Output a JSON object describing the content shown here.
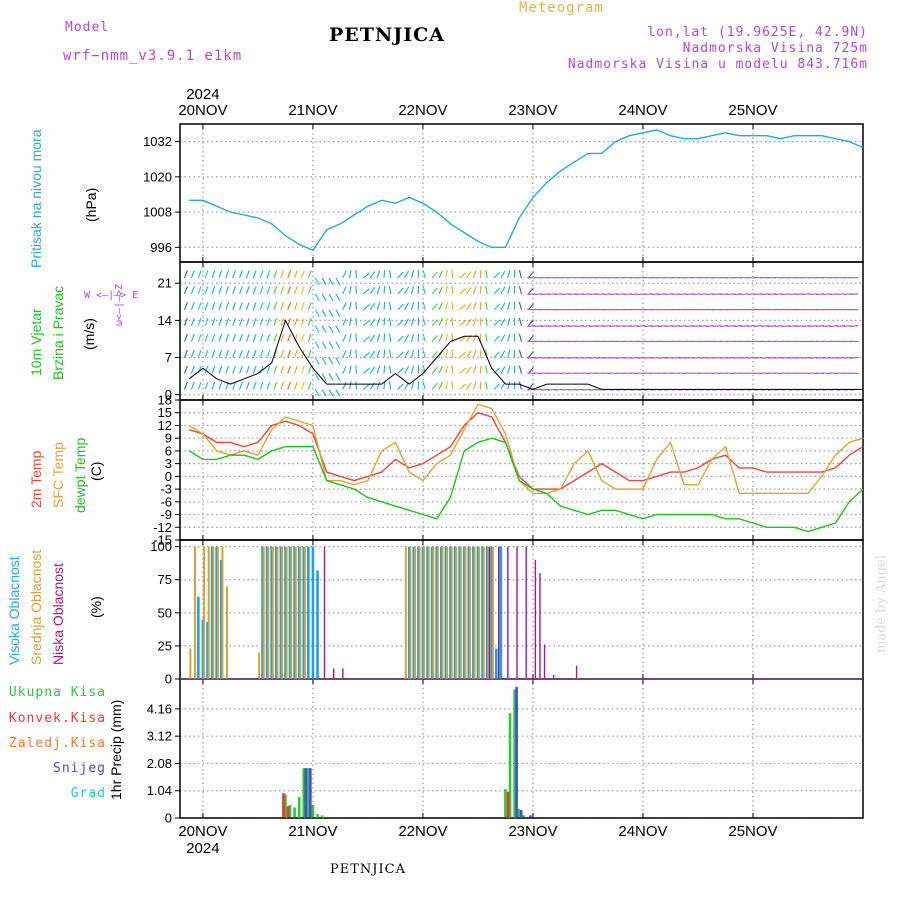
{
  "header": {
    "model_label": "Model",
    "model_name": "wrf−nmm_v3.9.1 e1km",
    "station": "PETNJICA",
    "chart_title": "Meteogram",
    "lonlat": "lon,lat (19.9625E, 42.9N)",
    "altitude": "Nadmorska Visina 725m",
    "model_altitude": "Nadmorska Visina u modelu 843.716m"
  },
  "footer": {
    "station": "PETNJICA",
    "credit": "made by Angel"
  },
  "time_axis": {
    "year": "2024",
    "days": [
      "20NOV",
      "21NOV",
      "22NOV",
      "23NOV",
      "24NOV",
      "25NOV"
    ],
    "start_hour": 0,
    "end_hour": 144
  },
  "panels": {
    "pressure": {
      "label": "Pritisak na nivou mora",
      "unit": "(hPa)"
    },
    "wind": {
      "label1": "10m Vjetar",
      "label2": "Brzina i Pravac",
      "unit": "(m/s)",
      "compass_ns": "ω<—|—>Z",
      "compass_we": "W <—|—> E"
    },
    "temp": {
      "label1": "2m Temp",
      "label2": "SFC Temp",
      "label3": "dewpt Temp",
      "unit": "(C)"
    },
    "cloud": {
      "label1": "Visoka Oblacnost",
      "label2": "Srednja Oblacnost",
      "label3": "Niska Oblacnost",
      "unit": "(%)"
    },
    "precip": {
      "legend": [
        "Ukupna Kisa",
        "Konvek.Kisa",
        "Zaledj.Kisa",
        "Snijeg",
        "Grad"
      ],
      "unit": "1hr Precip (mm)"
    }
  },
  "colors": {
    "pressure": "#2aa6e0",
    "temp2m": "#e8473c",
    "sfc": "#e0a23c",
    "dewpt": "#1fc01f",
    "high_cloud": "#1fa0e0",
    "mid_cloud": "#d4a23a",
    "low_cloud": "#a8188c",
    "total_rain": "#2fc43a",
    "conv_rain": "#e83838",
    "frz_rain": "#f07a30",
    "snow": "#4a4ad8",
    "hail": "#28c8c0",
    "violet": "#b04ad0"
  },
  "chart_data": [
    {
      "type": "line",
      "title": "Pritisak na nivou mora",
      "ylabel": "(hPa)",
      "ylim": [
        991,
        1038
      ],
      "yticks": [
        996,
        1008,
        1020,
        1032
      ],
      "series": [
        {
          "name": "Pritisak na nivou mora",
          "x": [
            -3,
            0,
            3,
            6,
            9,
            12,
            15,
            18,
            21,
            24,
            27,
            30,
            33,
            36,
            39,
            42,
            45,
            48,
            51,
            54,
            57,
            60,
            63,
            66,
            69,
            72,
            75,
            78,
            81,
            84,
            87,
            90,
            93,
            96,
            99,
            102,
            105,
            108,
            111,
            114,
            117,
            120,
            123,
            126,
            129,
            132,
            135,
            138,
            141,
            144
          ],
          "values": [
            1012,
            1012,
            1010,
            1008,
            1007,
            1006,
            1004,
            1000,
            997,
            995,
            1002,
            1004,
            1007,
            1010,
            1012,
            1011,
            1013,
            1011,
            1008,
            1004,
            1001,
            998,
            996,
            996,
            1006,
            1013,
            1018,
            1022,
            1025,
            1028,
            1028,
            1032,
            1034,
            1035,
            1036,
            1034,
            1033,
            1033,
            1034,
            1035,
            1034,
            1034,
            1034,
            1033,
            1034,
            1034,
            1034,
            1033,
            1032,
            1030
          ]
        }
      ]
    },
    {
      "type": "line",
      "title": "10m Vjetar Brzina i Pravac",
      "ylabel": "(m/s)",
      "ylim": [
        -1,
        25
      ],
      "yticks": [
        0,
        7,
        14,
        21
      ],
      "series": [
        {
          "name": "10m Vjetar",
          "x": [
            -3,
            0,
            3,
            6,
            9,
            12,
            15,
            18,
            21,
            24,
            27,
            30,
            33,
            36,
            39,
            42,
            45,
            48,
            51,
            54,
            57,
            60,
            63,
            66,
            69,
            72,
            75,
            78,
            81,
            84,
            87,
            90,
            93,
            96,
            99,
            102,
            105,
            108,
            111,
            114,
            117,
            120,
            123,
            126,
            129,
            132,
            135,
            138,
            141,
            144
          ],
          "values": [
            3,
            5,
            3,
            2,
            3,
            4,
            6,
            14,
            9,
            5,
            2,
            2,
            2,
            2,
            2,
            4,
            2,
            4,
            7,
            10,
            11,
            11,
            5,
            2,
            2,
            1,
            2,
            2,
            2,
            2,
            1,
            1,
            1,
            1,
            1,
            1,
            1,
            1,
            1,
            1,
            1,
            1,
            1,
            1,
            1,
            1,
            1,
            1,
            1,
            1
          ]
        }
      ]
    },
    {
      "type": "line",
      "title": "2m Temp / SFC Temp / dewpt Temp",
      "ylabel": "(C)",
      "ylim": [
        -15,
        18
      ],
      "yticks": [
        -15,
        -12,
        -9,
        -6,
        -3,
        0,
        3,
        6,
        9,
        12,
        15,
        18
      ],
      "x": [
        -3,
        0,
        3,
        6,
        9,
        12,
        15,
        18,
        21,
        24,
        27,
        30,
        33,
        36,
        39,
        42,
        45,
        48,
        51,
        54,
        57,
        60,
        63,
        66,
        69,
        72,
        75,
        78,
        81,
        84,
        87,
        90,
        93,
        96,
        99,
        102,
        105,
        108,
        111,
        114,
        117,
        120,
        123,
        126,
        129,
        132,
        135,
        138,
        141,
        144
      ],
      "series": [
        {
          "name": "2m Temp",
          "values": [
            11,
            10,
            8,
            8,
            7,
            8,
            12,
            13,
            12,
            10,
            1,
            0,
            -1,
            0,
            1,
            4,
            2,
            3,
            5,
            7,
            12,
            15,
            14,
            8,
            0,
            -3,
            -3,
            -3,
            -1,
            1,
            3,
            1,
            -1,
            -1,
            0,
            1,
            1,
            2,
            4,
            5,
            2,
            2,
            1,
            1,
            1,
            1,
            1,
            2,
            5,
            7
          ]
        },
        {
          "name": "SFC Temp",
          "values": [
            12,
            10,
            6,
            5,
            6,
            5,
            11,
            14,
            13,
            12,
            -1,
            -1,
            -2,
            -1,
            6,
            8,
            1,
            -1,
            3,
            5,
            11,
            17,
            16,
            10,
            -1,
            -4,
            -4,
            -3,
            3,
            6,
            -1,
            -3,
            -3,
            -3,
            4,
            8,
            -2,
            -2,
            4,
            7,
            -4,
            -4,
            -4,
            -4,
            -4,
            -4,
            0,
            5,
            8,
            9
          ]
        },
        {
          "name": "dewpt Temp",
          "values": [
            6,
            4,
            4,
            5,
            5,
            4,
            6,
            7,
            7,
            7,
            -1,
            -2,
            -3,
            -5,
            -6,
            -7,
            -8,
            -9,
            -10,
            -5,
            6,
            8,
            9,
            8,
            -1,
            -3,
            -4,
            -7,
            -8,
            -9,
            -8,
            -8,
            -9,
            -10,
            -9,
            -9,
            -9,
            -9,
            -9,
            -10,
            -10,
            -11,
            -12,
            -12,
            -12,
            -13,
            -12,
            -11,
            -6,
            -3
          ]
        }
      ]
    },
    {
      "type": "bar",
      "title": "Visoka / Srednja / Niska Oblacnost",
      "ylabel": "(%)",
      "ylim": [
        0,
        105
      ],
      "yticks": [
        0,
        25,
        50,
        75,
        100
      ],
      "series": [
        {
          "name": "Visoka Oblacnost",
          "x": [
            -1,
            0,
            1,
            2,
            3,
            4,
            13,
            14,
            15,
            16,
            17,
            18,
            19,
            20,
            21,
            22,
            23,
            24,
            25,
            45,
            46,
            47,
            48,
            49,
            50,
            51,
            52,
            53,
            54,
            55,
            56,
            57,
            58,
            59,
            60,
            61,
            62,
            63,
            64,
            65
          ],
          "values": [
            62,
            45,
            43,
            100,
            100,
            90,
            100,
            100,
            100,
            100,
            100,
            100,
            100,
            100,
            100,
            100,
            100,
            100,
            82,
            100,
            100,
            100,
            100,
            100,
            100,
            100,
            100,
            100,
            100,
            100,
            100,
            100,
            100,
            100,
            100,
            100,
            100,
            100,
            23,
            100
          ]
        },
        {
          "name": "Srednja Oblacnost",
          "x": [
            -3,
            -2,
            0,
            1,
            2,
            3,
            4,
            5,
            12,
            13,
            14,
            15,
            16,
            17,
            18,
            19,
            20,
            21,
            22,
            44,
            45,
            46,
            47,
            48,
            49,
            50,
            51,
            52,
            53,
            54,
            55,
            56,
            57,
            58,
            59,
            60,
            61,
            62,
            63
          ],
          "values": [
            23,
            100,
            100,
            100,
            100,
            100,
            100,
            70,
            20,
            100,
            100,
            100,
            100,
            100,
            100,
            100,
            100,
            100,
            100,
            100,
            100,
            100,
            100,
            100,
            100,
            100,
            100,
            100,
            100,
            100,
            100,
            100,
            100,
            100,
            100,
            100,
            100,
            100,
            100
          ]
        },
        {
          "name": "Niska Oblacnost",
          "x": [
            26,
            28,
            30,
            62,
            64,
            66,
            68,
            70,
            72,
            73,
            74,
            76,
            81,
            83,
            87
          ],
          "values": [
            100,
            8,
            8,
            100,
            100,
            100,
            100,
            100,
            90,
            80,
            26,
            3,
            10,
            0,
            0
          ]
        }
      ]
    },
    {
      "type": "bar",
      "title": "1hr Precip",
      "ylabel": "1hr Precip (mm)",
      "ylim": [
        0,
        5.3
      ],
      "yticks": [
        0,
        1.04,
        2.08,
        3.12,
        4.16
      ],
      "series": [
        {
          "name": "Ukupna Kisa",
          "x": [
            18,
            19,
            20,
            21,
            22,
            23,
            24,
            25,
            26,
            66,
            67,
            68,
            69,
            70
          ],
          "values": [
            0.9,
            0.5,
            0.4,
            0.8,
            1.9,
            1.9,
            0.5,
            0.15,
            0.1,
            1.1,
            4.0,
            4.9,
            0.35,
            0.1
          ]
        },
        {
          "name": "Konvek.Kisa",
          "x": [
            18,
            19,
            67
          ],
          "values": [
            0.95,
            0.45,
            1.0
          ]
        },
        {
          "name": "Zaledj.Kisa",
          "x": [],
          "values": []
        },
        {
          "name": "Snijeg",
          "x": [
            22,
            23,
            68,
            69,
            71
          ],
          "values": [
            1.9,
            1.9,
            5.0,
            0.3,
            0.1
          ]
        },
        {
          "name": "Grad",
          "x": [],
          "values": []
        }
      ]
    }
  ]
}
